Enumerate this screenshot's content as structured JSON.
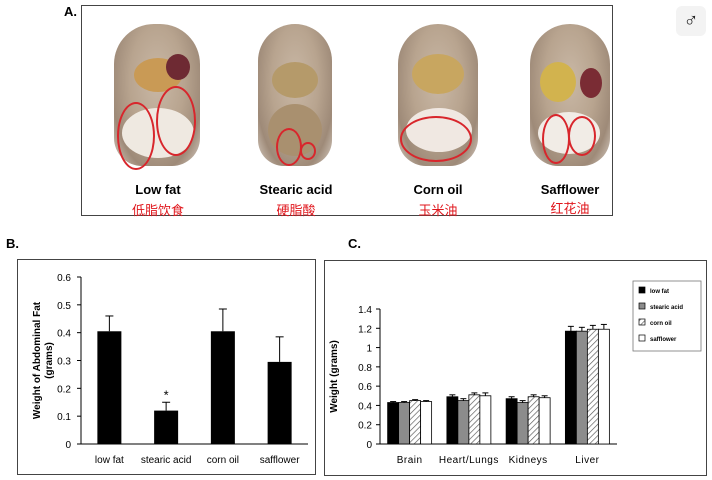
{
  "panel_a": {
    "letter": "A.",
    "mice": [
      {
        "label": "Low fat",
        "chinese": "低脂饮食"
      },
      {
        "label": "Stearic acid",
        "chinese": "硬脂酸"
      },
      {
        "label": "Corn oil",
        "chinese": "玉米油"
      },
      {
        "label": "Safflower",
        "chinese": "红花油"
      }
    ]
  },
  "panel_b": {
    "letter": "B."
  },
  "panel_c": {
    "letter": "C."
  },
  "logo_glyph": "♂",
  "chart_data": [
    {
      "type": "bar",
      "ylabel": "Weight of Abdominal Fat (grams)",
      "categories": [
        "low fat",
        "stearic acid",
        "corn oil",
        "safflower"
      ],
      "values": [
        0.405,
        0.12,
        0.405,
        0.295
      ],
      "errors": [
        0.055,
        0.03,
        0.08,
        0.09
      ],
      "annotation": {
        "category": "stearic acid",
        "text": "*"
      },
      "ylim": [
        0,
        0.6
      ],
      "yticks": [
        0,
        0.1,
        0.2,
        0.3,
        0.4,
        0.5,
        0.6
      ],
      "bar_color": "#000000"
    },
    {
      "type": "bar",
      "ylabel": "Weight (grams)",
      "categories": [
        "Brain",
        "Heart/Lungs",
        "Kidneys",
        "Liver"
      ],
      "series": [
        {
          "name": "low fat",
          "values": [
            0.43,
            0.49,
            0.47,
            1.17
          ],
          "errors": [
            0.01,
            0.02,
            0.02,
            0.05
          ],
          "fill": "solid-black"
        },
        {
          "name": "stearic acid",
          "values": [
            0.43,
            0.45,
            0.43,
            1.17
          ],
          "errors": [
            0.01,
            0.02,
            0.02,
            0.04
          ],
          "fill": "gray"
        },
        {
          "name": "corn oil",
          "values": [
            0.45,
            0.51,
            0.49,
            1.19
          ],
          "errors": [
            0.01,
            0.02,
            0.02,
            0.04
          ],
          "fill": "hatched"
        },
        {
          "name": "safflower",
          "values": [
            0.44,
            0.5,
            0.48,
            1.19
          ],
          "errors": [
            0.01,
            0.03,
            0.02,
            0.05
          ],
          "fill": "white"
        }
      ],
      "ylim": [
        0,
        1.4
      ],
      "yticks": [
        0,
        0.2,
        0.4,
        0.6,
        0.8,
        1,
        1.2,
        1.4
      ],
      "legend_position": "top-right"
    }
  ]
}
